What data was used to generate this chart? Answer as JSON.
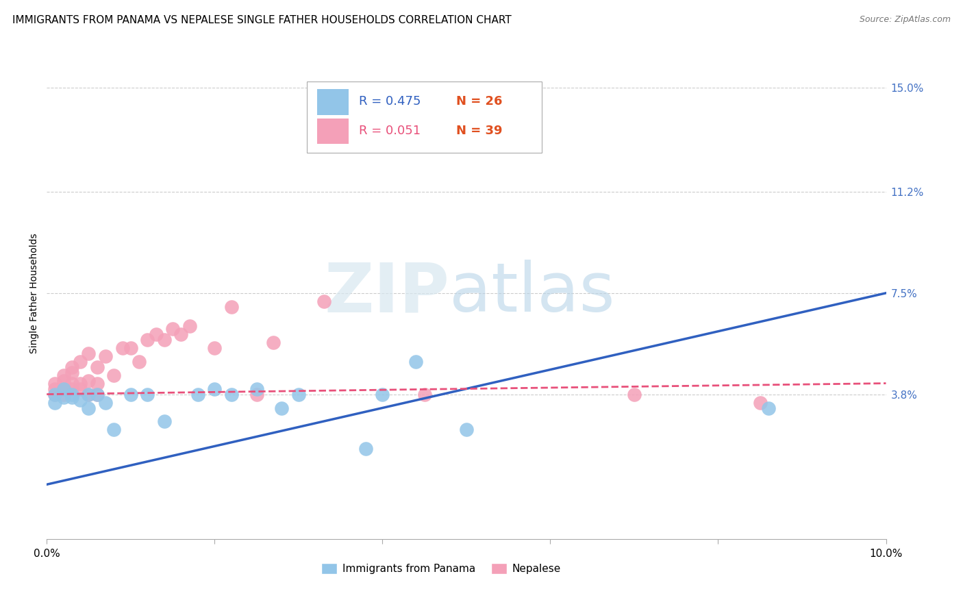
{
  "title": "IMMIGRANTS FROM PANAMA VS NEPALESE SINGLE FATHER HOUSEHOLDS CORRELATION CHART",
  "source": "Source: ZipAtlas.com",
  "ylabel": "Single Father Households",
  "xlim": [
    0.0,
    0.1
  ],
  "ylim": [
    -0.015,
    0.165
  ],
  "xticks": [
    0.0,
    0.02,
    0.04,
    0.06,
    0.08,
    0.1
  ],
  "xticklabels": [
    "0.0%",
    "",
    "",
    "",
    "",
    "10.0%"
  ],
  "ytick_labels_right": [
    "15.0%",
    "11.2%",
    "7.5%",
    "3.8%"
  ],
  "ytick_vals_right": [
    0.15,
    0.112,
    0.075,
    0.038
  ],
  "legend_r1": "R = 0.475",
  "legend_n1": "N = 26",
  "legend_r2": "R = 0.051",
  "legend_n2": "N = 39",
  "color_panama": "#92C5E8",
  "color_nepalese": "#F4A0B8",
  "color_line_panama": "#3060C0",
  "color_line_nepalese": "#E8507A",
  "panama_x": [
    0.001,
    0.001,
    0.002,
    0.002,
    0.003,
    0.003,
    0.004,
    0.005,
    0.005,
    0.006,
    0.007,
    0.008,
    0.01,
    0.012,
    0.014,
    0.018,
    0.02,
    0.022,
    0.025,
    0.028,
    0.03,
    0.038,
    0.04,
    0.044,
    0.05,
    0.086
  ],
  "panama_y": [
    0.038,
    0.035,
    0.037,
    0.04,
    0.037,
    0.038,
    0.036,
    0.033,
    0.038,
    0.038,
    0.035,
    0.025,
    0.038,
    0.038,
    0.028,
    0.038,
    0.04,
    0.038,
    0.04,
    0.033,
    0.038,
    0.018,
    0.038,
    0.05,
    0.025,
    0.033
  ],
  "nepalese_x": [
    0.001,
    0.001,
    0.001,
    0.002,
    0.002,
    0.002,
    0.002,
    0.003,
    0.003,
    0.003,
    0.003,
    0.004,
    0.004,
    0.004,
    0.005,
    0.005,
    0.005,
    0.006,
    0.006,
    0.006,
    0.007,
    0.008,
    0.009,
    0.01,
    0.011,
    0.012,
    0.013,
    0.014,
    0.015,
    0.016,
    0.017,
    0.02,
    0.022,
    0.025,
    0.027,
    0.033,
    0.045,
    0.07,
    0.085
  ],
  "nepalese_y": [
    0.038,
    0.04,
    0.042,
    0.038,
    0.04,
    0.043,
    0.045,
    0.04,
    0.042,
    0.046,
    0.048,
    0.04,
    0.042,
    0.05,
    0.038,
    0.043,
    0.053,
    0.038,
    0.042,
    0.048,
    0.052,
    0.045,
    0.055,
    0.055,
    0.05,
    0.058,
    0.06,
    0.058,
    0.062,
    0.06,
    0.063,
    0.055,
    0.07,
    0.038,
    0.057,
    0.072,
    0.038,
    0.038,
    0.035
  ],
  "title_fontsize": 11,
  "axis_label_fontsize": 10,
  "tick_fontsize": 11,
  "background_color": "#FFFFFF",
  "grid_color": "#CCCCCC"
}
